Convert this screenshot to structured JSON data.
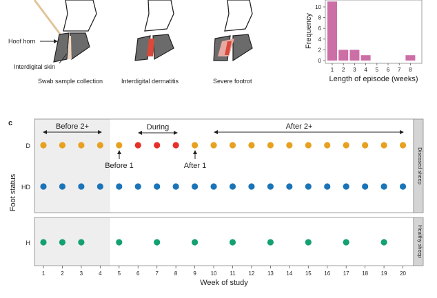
{
  "top_left": {
    "labels": {
      "hoof_horn": "Hoof horn",
      "interdigital_skin": "Interdigital skin"
    },
    "captions": [
      "Swab sample collection",
      "Interdigital dermatitis",
      "Severe footrot"
    ]
  },
  "histogram": {
    "chart_data": {
      "type": "bar",
      "x": [
        1,
        2,
        3,
        4,
        5,
        6,
        7,
        8
      ],
      "values": [
        11,
        2,
        2,
        1,
        0,
        0,
        0,
        1
      ],
      "xlabel": "Length of episode (weeks)",
      "ylabel": "Frequency",
      "ytick_labels": [
        "0",
        "2",
        "4",
        "6",
        "8",
        "10"
      ],
      "xtick_labels": [
        "1",
        "2",
        "3",
        "4",
        "5",
        "6",
        "7",
        "8"
      ],
      "color": "#cc6fa6"
    }
  },
  "panel_c": {
    "letter": "c",
    "ylabel": "Foot status",
    "xlabel": "Week of study",
    "xtick_labels": [
      "1",
      "2",
      "3",
      "4",
      "5",
      "6",
      "7",
      "8",
      "9",
      "10",
      "11",
      "12",
      "13",
      "14",
      "15",
      "16",
      "17",
      "18",
      "19",
      "20"
    ],
    "status_labels": {
      "d": "D",
      "hd": "HD",
      "h": "H"
    },
    "strip_labels": {
      "diseased": "Diseased sheep",
      "healthy": "Healthy sheep"
    },
    "annotations": {
      "before2": "Before 2+",
      "during": "During",
      "after2": "After 2+",
      "before1": "Before 1",
      "after1": "After 1"
    },
    "colors": {
      "before_after": "#e8a020",
      "during": "#e8302a",
      "hd": "#1a74b8",
      "h": "#13a073",
      "shade": "#eeeeee",
      "strip": "#d4d4d4"
    },
    "chart_data": {
      "type": "scatter",
      "series": [
        {
          "name": "D",
          "weeks": [
            1,
            2,
            3,
            4,
            5,
            6,
            7,
            8,
            9,
            10,
            11,
            12,
            13,
            14,
            15,
            16,
            17,
            18,
            19,
            20
          ],
          "color_codes": [
            "b",
            "b",
            "b",
            "b",
            "b",
            "d",
            "d",
            "d",
            "b",
            "b",
            "b",
            "b",
            "b",
            "b",
            "b",
            "b",
            "b",
            "b",
            "b",
            "b"
          ]
        },
        {
          "name": "HD",
          "weeks": [
            1,
            2,
            3,
            4,
            5,
            6,
            7,
            8,
            9,
            10,
            11,
            12,
            13,
            14,
            15,
            16,
            17,
            18,
            19,
            20
          ]
        },
        {
          "name": "H",
          "weeks": [
            1,
            2,
            3,
            5,
            7,
            9,
            11,
            13,
            15,
            17,
            19
          ]
        }
      ],
      "shaded_weeks": [
        0.5,
        4.5
      ]
    }
  }
}
